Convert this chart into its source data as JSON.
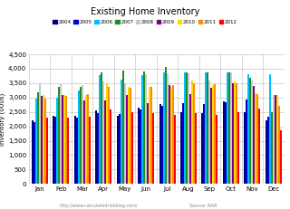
{
  "title": "Existing Home Inventory",
  "ylabel": "Inventory (000s)",
  "xlabel_url": "http://www.calculatedriskblog.com/",
  "xlabel_source": "Source: NAR",
  "months": [
    "Jan",
    "Feb",
    "Mar",
    "Apr",
    "May",
    "Jun",
    "Jul",
    "Aug",
    "Sep",
    "Oct",
    "Nov",
    "Dec"
  ],
  "years": [
    "2004",
    "2005",
    "2006",
    "2007",
    "2008",
    "2009",
    "2010",
    "2011",
    "2012"
  ],
  "colors": [
    "#000080",
    "#0000CD",
    "#00BFFF",
    "#228B22",
    "#C8C8C8",
    "#800080",
    "#FFD700",
    "#FF8C00",
    "#FF0000"
  ],
  "ylim": [
    0,
    4500
  ],
  "yticks": [
    0,
    500,
    1000,
    1500,
    2000,
    2500,
    3000,
    3500,
    4000,
    4500
  ],
  "data": {
    "2004": [
      2200,
      2350,
      2380,
      2560,
      2380,
      2650,
      2760,
      2500,
      2460,
      2870,
      2500,
      2200
    ],
    "2005": [
      2150,
      2320,
      2310,
      2470,
      2430,
      2580,
      2720,
      2820,
      2760,
      2840,
      2920,
      2330
    ],
    "2006": [
      2960,
      3000,
      3250,
      3780,
      3620,
      3780,
      3870,
      3870,
      3870,
      3870,
      3800,
      3800
    ],
    "2007": [
      3180,
      3380,
      3380,
      3880,
      3950,
      3900,
      4050,
      3870,
      3870,
      3870,
      3700,
      2500
    ],
    "2008": [
      3500,
      3450,
      3430,
      3560,
      3490,
      3820,
      3830,
      3830,
      3600,
      3860,
      3580,
      3100
    ],
    "2009": [
      3070,
      3080,
      2900,
      2900,
      3080,
      2800,
      3420,
      3120,
      3350,
      3490,
      3400,
      3100
    ],
    "2010": [
      3100,
      3080,
      3100,
      3490,
      3370,
      3370,
      3380,
      3580,
      3420,
      3550,
      3140,
      3100
    ],
    "2011": [
      2960,
      3060,
      3110,
      3370,
      3350,
      3380,
      3430,
      3490,
      3460,
      3490,
      3120,
      2700
    ],
    "2012": [
      2300,
      2310,
      2330,
      2590,
      2490,
      2460,
      2390,
      2470,
      2400,
      2480,
      2630,
      1850
    ]
  },
  "background_color": "#FFFFFF",
  "grid_color": "#C8C8C8"
}
